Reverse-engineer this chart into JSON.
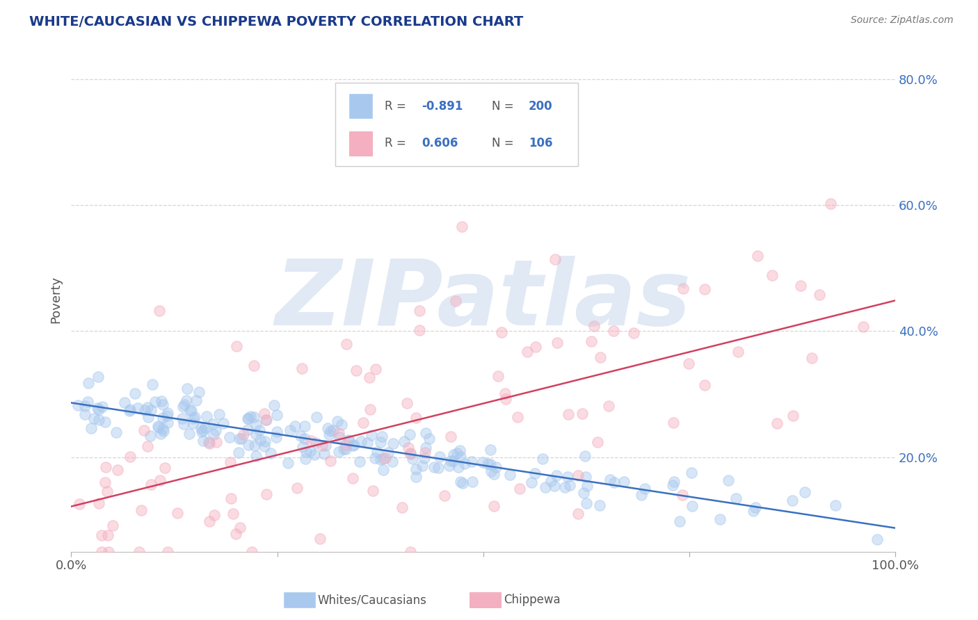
{
  "title": "WHITE/CAUCASIAN VS CHIPPEWA POVERTY CORRELATION CHART",
  "source": "Source: ZipAtlas.com",
  "ylabel": "Poverty",
  "blue_R": -0.891,
  "blue_N": 200,
  "pink_R": 0.606,
  "pink_N": 106,
  "blue_scatter_color": "#a8c8ee",
  "pink_scatter_color": "#f4b0c0",
  "blue_line_color": "#3a70c0",
  "pink_line_color": "#d04060",
  "title_color": "#1a3a8a",
  "source_color": "#777777",
  "legend_label_blue": "Whites/Caucasians",
  "legend_label_pink": "Chippewa",
  "xlim": [
    0.0,
    1.0
  ],
  "ylim": [
    0.05,
    0.85
  ],
  "yticks": [
    0.2,
    0.4,
    0.6,
    0.8
  ],
  "ytick_labels": [
    "20.0%",
    "40.0%",
    "60.0%",
    "80.0%"
  ],
  "background_color": "#ffffff",
  "grid_color": "#cccccc",
  "watermark_text": "ZIPatlas",
  "watermark_color": "#c8d8ec",
  "legend_R_label_color": "#3a70c0",
  "legend_text_color": "#555555"
}
